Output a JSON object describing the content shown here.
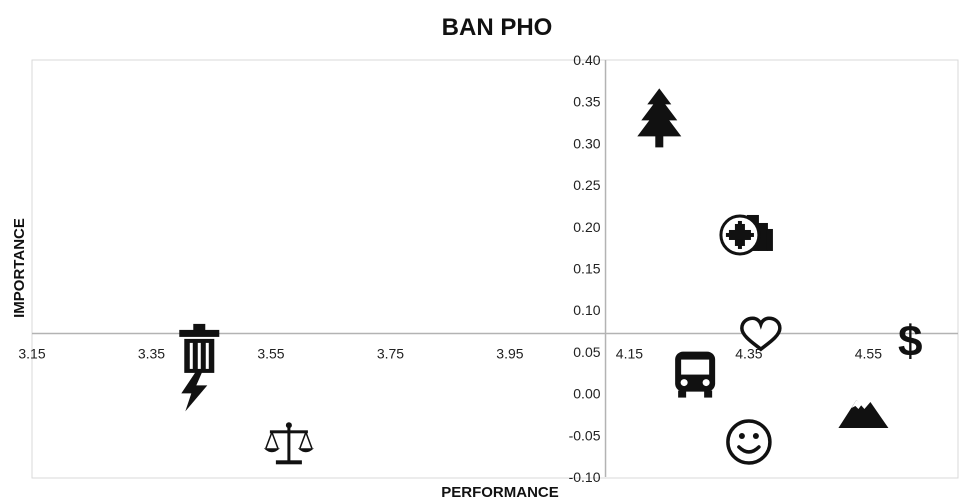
{
  "chart_data": {
    "type": "scatter",
    "title": "BAN PHO",
    "xlabel": "PERFORMANCE",
    "ylabel": "IMPORTANCE",
    "xlim": [
      3.15,
      4.7
    ],
    "ylim": [
      -0.1,
      0.4
    ],
    "x_ticks": [
      "3.15",
      "3.35",
      "3.55",
      "3.75",
      "3.95",
      "4.15",
      "4.35",
      "4.55"
    ],
    "y_ticks": [
      "-0.10",
      "-0.05",
      "0.00",
      "0.05",
      "0.10",
      "0.15",
      "0.20",
      "0.25",
      "0.30",
      "0.35",
      "0.40"
    ],
    "x_axis_crosses_at_y": 0.072,
    "y_axis_crosses_at_x": 4.11,
    "grid": false,
    "points": [
      {
        "icon": "tree-icon",
        "x": 4.2,
        "y": 0.33
      },
      {
        "icon": "hospital-icon",
        "x": 4.34,
        "y": 0.195
      },
      {
        "icon": "heart-icon",
        "x": 4.37,
        "y": 0.07
      },
      {
        "icon": "dollar-icon",
        "x": 4.62,
        "y": 0.062
      },
      {
        "icon": "bus-icon",
        "x": 4.26,
        "y": 0.024
      },
      {
        "icon": "trash-icon",
        "x": 3.43,
        "y": 0.05
      },
      {
        "icon": "lightning-icon",
        "x": 3.42,
        "y": 0.005
      },
      {
        "icon": "mountain-icon",
        "x": 4.54,
        "y": -0.022
      },
      {
        "icon": "smiley-icon",
        "x": 4.35,
        "y": -0.058
      },
      {
        "icon": "scales-icon",
        "x": 3.58,
        "y": -0.062
      }
    ]
  }
}
